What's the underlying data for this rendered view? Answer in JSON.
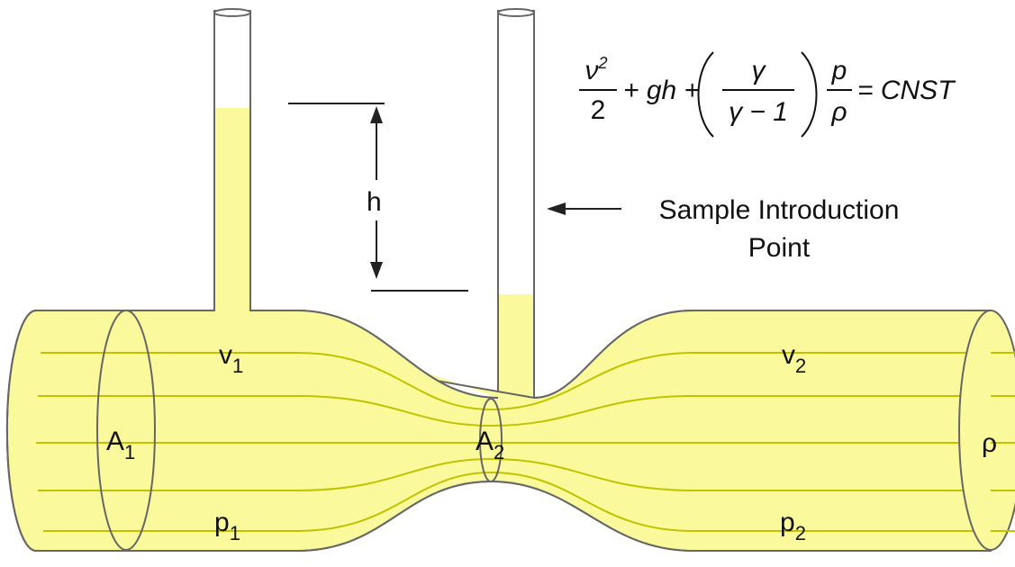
{
  "labels": {
    "v1": {
      "base": "v",
      "sub": "1"
    },
    "v2": {
      "base": "v",
      "sub": "2"
    },
    "A1": {
      "base": "A",
      "sub": "1"
    },
    "A2": {
      "base": "A",
      "sub": "2"
    },
    "p1": {
      "base": "p",
      "sub": "1"
    },
    "p2": {
      "base": "p",
      "sub": "2"
    },
    "rho": "ρ",
    "h": "h",
    "sample": [
      "Sample Introduction",
      "Point"
    ]
  },
  "equation": {
    "num1": "ν",
    "num1_sup": "2",
    "den1": "2",
    "plus_gh": "+ gh +",
    "num2": "γ",
    "den2": "γ − 1",
    "num3": "p",
    "den3": "ρ",
    "rhs": "= CNST"
  }
}
